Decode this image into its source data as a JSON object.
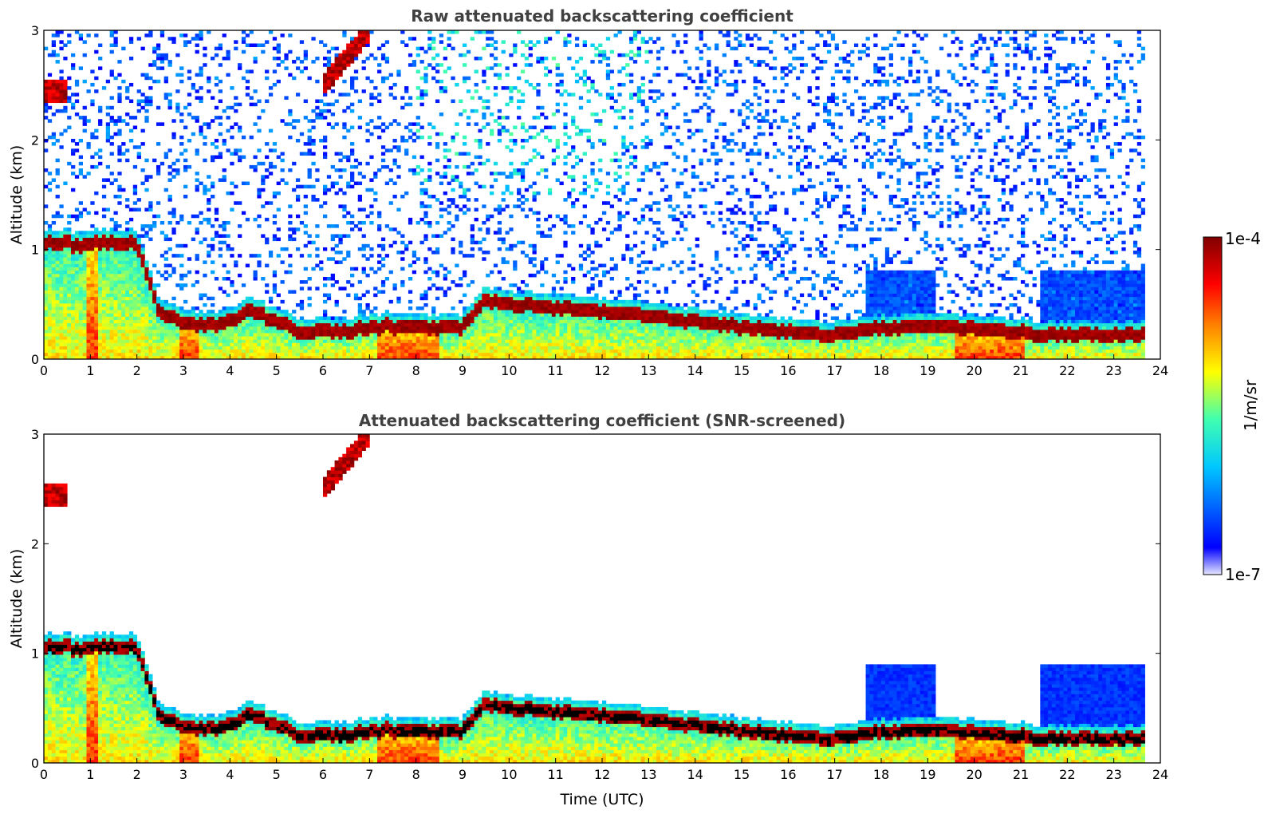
{
  "chart_data": [
    {
      "type": "heatmap",
      "title": "Raw attenuated backscattering coefficient",
      "xlabel": "",
      "ylabel": "Altitude (km)",
      "xlim": [
        0,
        24
      ],
      "ylim": [
        0,
        3
      ],
      "x_ticks": [
        "0",
        "1",
        "2",
        "3",
        "4",
        "5",
        "6",
        "7",
        "8",
        "9",
        "10",
        "11",
        "12",
        "13",
        "14",
        "15",
        "16",
        "17",
        "18",
        "19",
        "20",
        "21",
        "22",
        "23",
        "24"
      ],
      "y_ticks": [
        "0",
        "1",
        "2",
        "3"
      ],
      "data_end_time": 23.65,
      "layers": [
        {
          "name": "mixed-layer top / cloud base",
          "time": [
            0,
            1,
            2,
            2.5,
            3,
            3.5,
            4,
            4.5,
            5,
            5.5,
            6.5,
            7.2,
            8,
            9,
            9.5,
            10,
            11,
            12,
            13,
            14,
            15,
            16,
            17,
            17.8,
            18.3,
            19.2,
            20,
            21,
            21.4
          ],
          "altitude": [
            1.05,
            1.05,
            1.05,
            0.4,
            0.35,
            0.3,
            0.35,
            0.45,
            0.35,
            0.25,
            0.25,
            0.3,
            0.3,
            0.3,
            0.55,
            0.5,
            0.47,
            0.43,
            0.4,
            0.35,
            0.3,
            0.25,
            0.22,
            0.28,
            0.28,
            0.3,
            0.28,
            0.25,
            0.22
          ]
        },
        {
          "name": "elevated aerosol layer",
          "time": [
            0,
            0.5,
            6,
            6.5,
            7
          ],
          "altitude": [
            2.45,
            2.45,
            2.5,
            2.75,
            3.0
          ]
        }
      ]
    },
    {
      "type": "heatmap",
      "title": "Attenuated backscattering coefficient (SNR-screened)",
      "xlabel": "Time (UTC)",
      "ylabel": "Altitude (km)",
      "xlim": [
        0,
        24
      ],
      "ylim": [
        0,
        3
      ],
      "x_ticks": [
        "0",
        "1",
        "2",
        "3",
        "4",
        "5",
        "6",
        "7",
        "8",
        "9",
        "10",
        "11",
        "12",
        "13",
        "14",
        "15",
        "16",
        "17",
        "18",
        "19",
        "20",
        "21",
        "22",
        "23",
        "24"
      ],
      "y_ticks": [
        "0",
        "1",
        "2",
        "3"
      ],
      "data_end_time": 23.65
    }
  ],
  "colorbar": {
    "label": "1/m/sr",
    "max_label": "1e-4",
    "min_label": "1e-7",
    "colormap": "jet",
    "scale": "log",
    "colors": [
      "#e6e6ff",
      "#0000ff",
      "#00c8ff",
      "#40ffb0",
      "#ffff00",
      "#ff8000",
      "#ff0000",
      "#800000"
    ]
  }
}
